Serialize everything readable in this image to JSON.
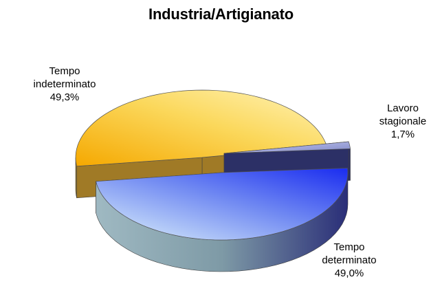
{
  "chart_data": {
    "type": "pie",
    "title": "Industria/Artigianato",
    "slices": [
      {
        "label_lines": [
          "Tempo",
          "indeterminato"
        ],
        "value_label": "49,3%",
        "value": 49.3,
        "color": "#f4c430"
      },
      {
        "label_lines": [
          "Lavoro",
          "stagionale"
        ],
        "value_label": "1,7%",
        "value": 1.7,
        "color": "#9aa0d8"
      },
      {
        "label_lines": [
          "Tempo",
          "determinato"
        ],
        "value_label": "49,0%",
        "value": 49.0,
        "color": "#2f3df0"
      }
    ],
    "style": "3d-exploded",
    "legend": "none"
  }
}
